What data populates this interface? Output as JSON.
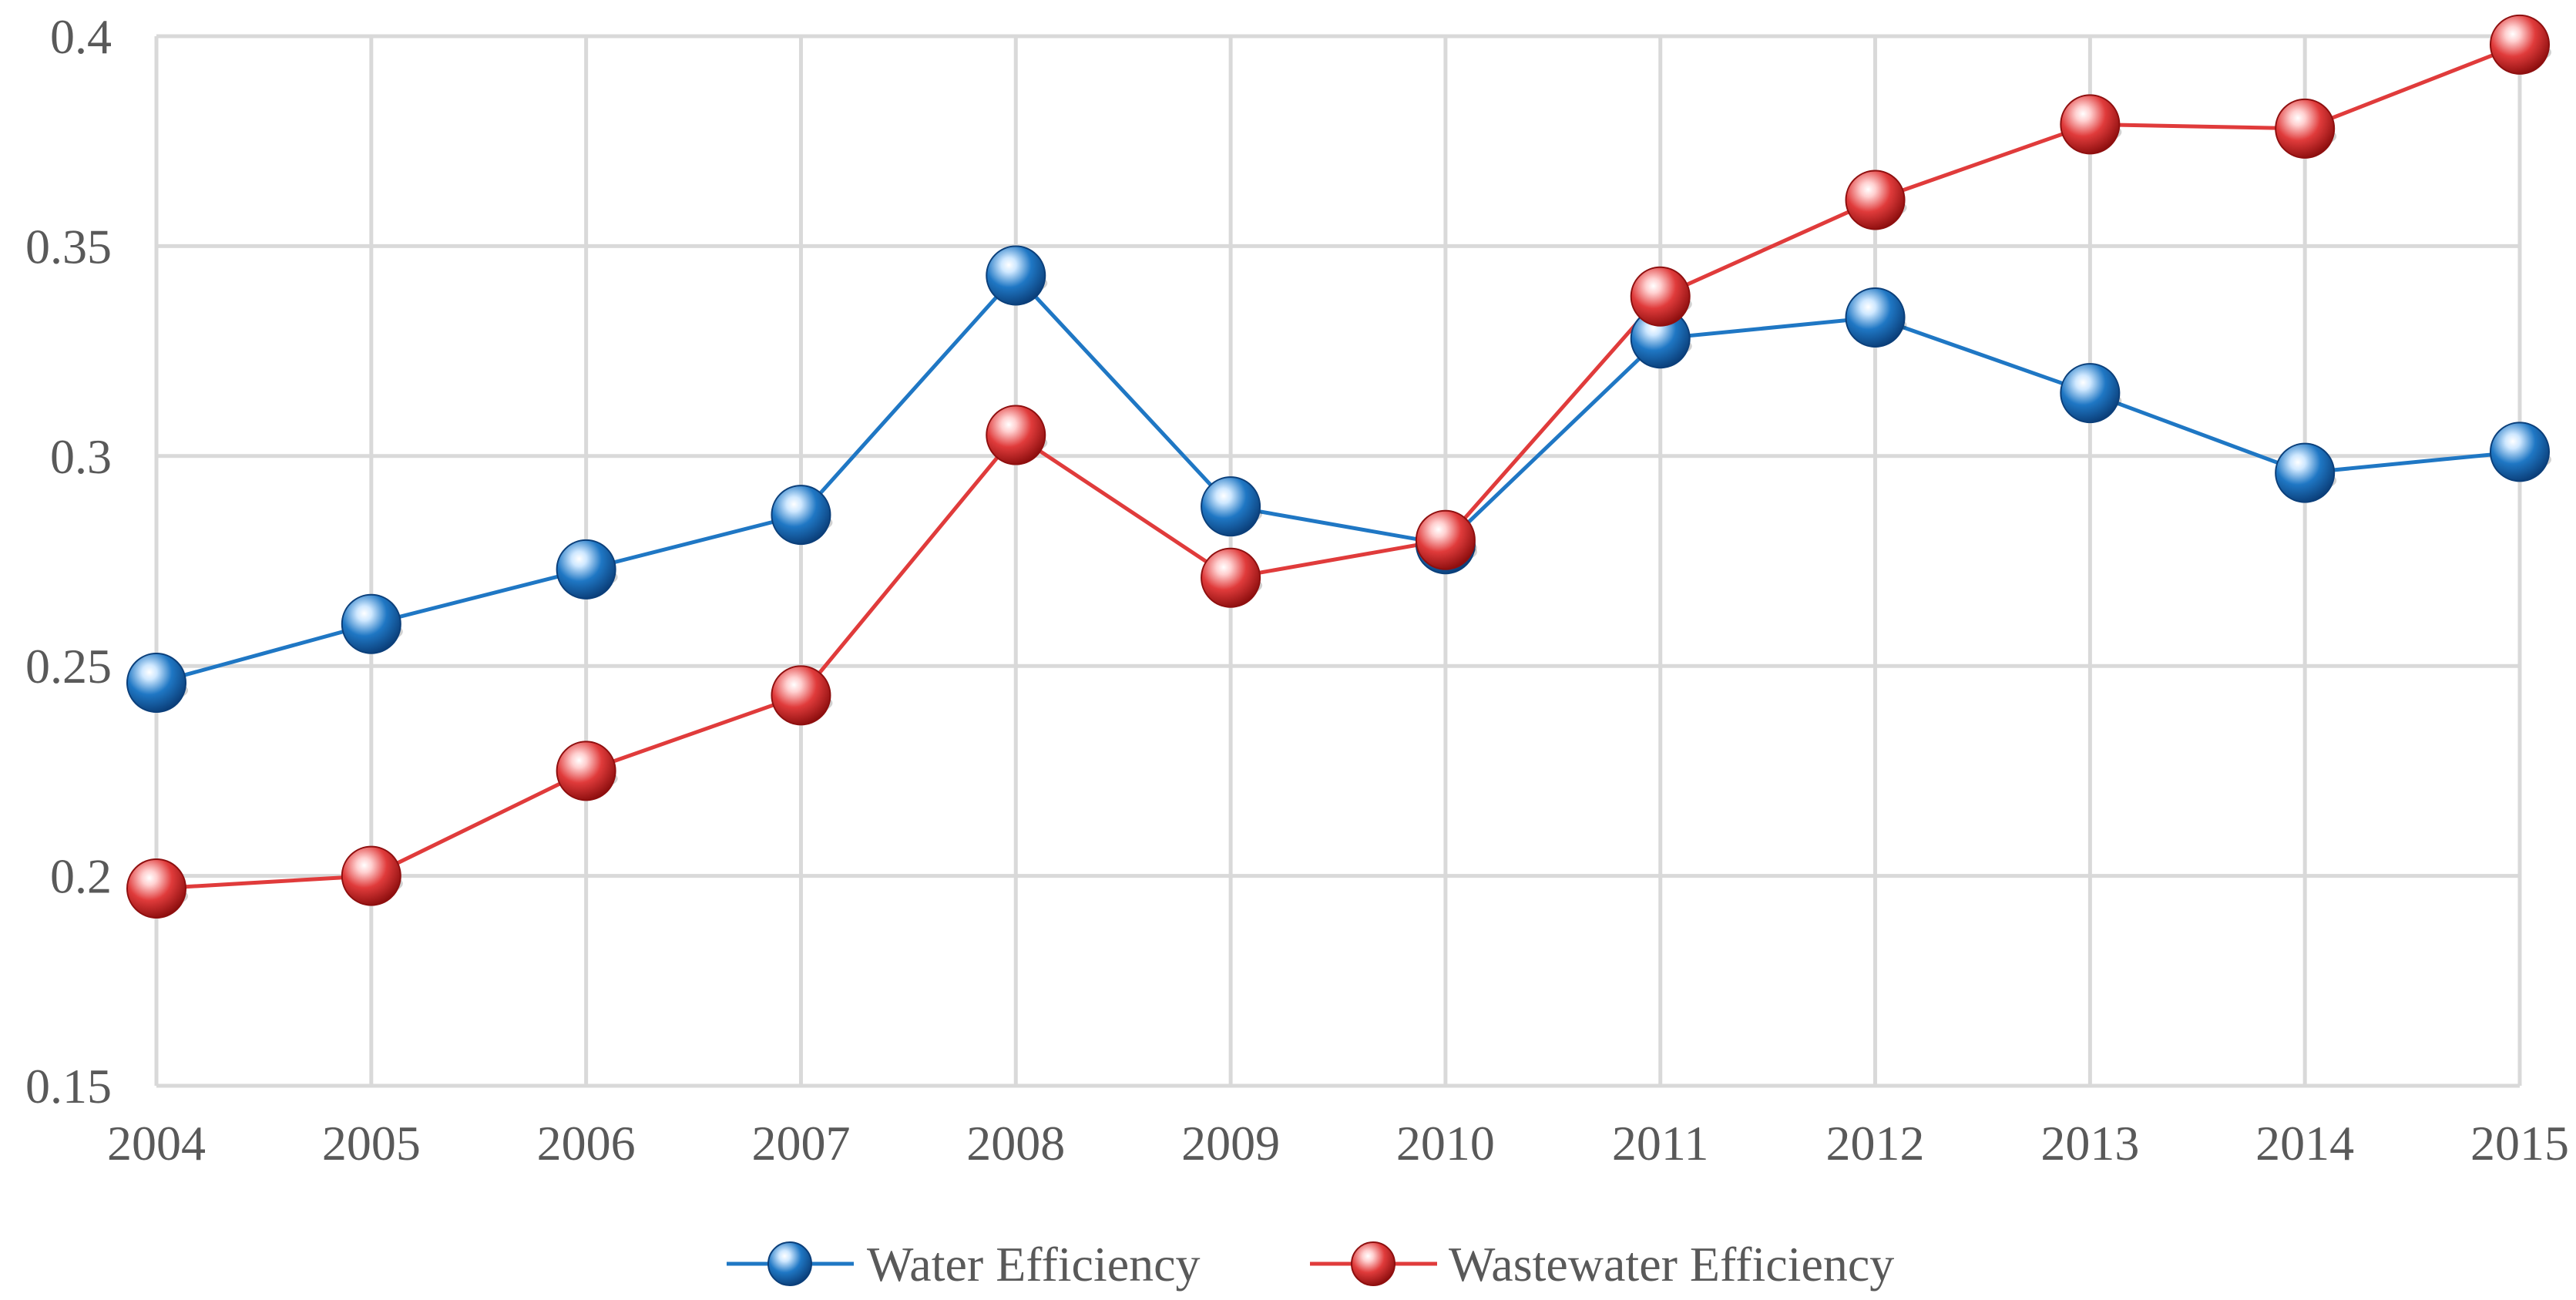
{
  "chart_data": {
    "type": "line",
    "title": "",
    "xlabel": "",
    "ylabel": "",
    "categories": [
      "2004",
      "2005",
      "2006",
      "2007",
      "2008",
      "2009",
      "2010",
      "2011",
      "2012",
      "2013",
      "2014",
      "2015"
    ],
    "ylim": [
      0.15,
      0.4
    ],
    "yticks": [
      {
        "value": 0.15,
        "label": "0.15"
      },
      {
        "value": 0.2,
        "label": "0.2"
      },
      {
        "value": 0.25,
        "label": "0.25"
      },
      {
        "value": 0.3,
        "label": "0.3"
      },
      {
        "value": 0.35,
        "label": "0.35"
      },
      {
        "value": 0.4,
        "label": "0.4"
      }
    ],
    "grid": true,
    "legend_position": "bottom-center",
    "series": [
      {
        "name": "Water Efficiency",
        "color": "#1f77c4",
        "marker_dark": "#0b3f7a",
        "marker_light": "#cfe8ff",
        "values": [
          0.246,
          0.26,
          0.273,
          0.286,
          0.343,
          0.288,
          0.279,
          0.328,
          0.333,
          0.315,
          0.296,
          0.301
        ]
      },
      {
        "name": "Wastewater Efficiency",
        "color": "#e03b3b",
        "marker_dark": "#8e0f0f",
        "marker_light": "#ffd0d0",
        "values": [
          0.197,
          0.2,
          0.225,
          0.243,
          0.305,
          0.271,
          0.28,
          0.338,
          0.361,
          0.379,
          0.378,
          0.398
        ]
      }
    ]
  }
}
